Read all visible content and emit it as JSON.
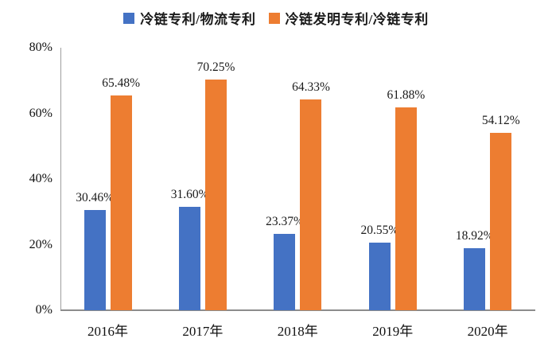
{
  "chart_data": {
    "type": "bar",
    "title": "",
    "xlabel": "",
    "ylabel": "",
    "categories": [
      "2016年",
      "2017年",
      "2018年",
      "2019年",
      "2020年"
    ],
    "series": [
      {
        "name": "冷链专利/物流专利",
        "color": "#4472C4",
        "values": [
          30.46,
          31.6,
          23.37,
          20.55,
          18.92
        ],
        "labels": [
          "30.46%",
          "31.60%",
          "23.37%",
          "20.55%",
          "18.92%"
        ]
      },
      {
        "name": "冷链发明专利/冷链专利",
        "color": "#ED7D31",
        "values": [
          65.48,
          70.25,
          64.33,
          61.88,
          54.12
        ],
        "labels": [
          "65.48%",
          "70.25%",
          "64.33%",
          "61.88%",
          "54.12%"
        ]
      }
    ],
    "ylim": [
      0,
      80
    ],
    "yticks": [
      {
        "value": 0,
        "label": "0%"
      },
      {
        "value": 20,
        "label": "20%"
      },
      {
        "value": 40,
        "label": "40%"
      },
      {
        "value": 60,
        "label": "60%"
      },
      {
        "value": 80,
        "label": "80%"
      }
    ],
    "grid": false,
    "legend_position": "top",
    "axis_color": "#9e9e9e"
  }
}
